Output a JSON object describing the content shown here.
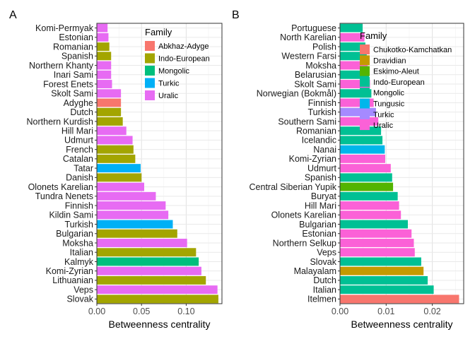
{
  "colors": {
    "Abkhaz-Adyge": "#F8766D",
    "Indo-European": "#A3A500",
    "Mongolic": "#00BF7D",
    "Turkic": "#00B0F6",
    "Uralic": "#E76BF3",
    "Chukotko-Kamchatkan": "#F8766D",
    "Dravidian": "#C49A00",
    "Eskimo-Aleut": "#53B400",
    "Tungusic": "#00B6EB",
    "Uralic_B": "#FB61D7",
    "Turkic_B": "#A58AFF",
    "Mongolic_B": "#00C094",
    "Indo-European_B": "#00C094"
  },
  "chart_data": [
    {
      "type": "bar",
      "orientation": "horizontal",
      "panel_label": "A",
      "xlabel": "Betweenness centrality",
      "xlim": [
        0,
        0.14
      ],
      "x_ticks": [
        0.0,
        0.05,
        0.1
      ],
      "x_tick_labels": [
        "0.00",
        "0.05",
        "0.10"
      ],
      "grid": true,
      "legend": {
        "title": "Family",
        "position": "top-right",
        "entries": [
          {
            "label": "Abkhaz-Adyge",
            "color": "#F8766D"
          },
          {
            "label": "Indo-European",
            "color": "#A3A500"
          },
          {
            "label": "Mongolic",
            "color": "#00BF7D"
          },
          {
            "label": "Turkic",
            "color": "#00B0F6"
          },
          {
            "label": "Uralic",
            "color": "#E76BF3"
          }
        ]
      },
      "categories": [
        "Komi-Permyak",
        "Estonian",
        "Romanian",
        "Spanish",
        "Northern Khanty",
        "Inari Sami",
        "Forest Enets",
        "Skolt Sami",
        "Adyghe",
        "Dutch",
        "Northern Kurdish",
        "Hill Mari",
        "Udmurt",
        "French",
        "Catalan",
        "Tatar",
        "Danish",
        "Olonets Karelian",
        "Tundra Nenets",
        "Finnish",
        "Kildin Sami",
        "Turkish",
        "Bulgarian",
        "Moksha",
        "Italian",
        "Kalmyk",
        "Komi-Zyrian",
        "Lithuanian",
        "Veps",
        "Slovak"
      ],
      "values": [
        0.012,
        0.013,
        0.014,
        0.016,
        0.016,
        0.016,
        0.017,
        0.027,
        0.027,
        0.027,
        0.029,
        0.033,
        0.04,
        0.041,
        0.043,
        0.049,
        0.05,
        0.053,
        0.066,
        0.077,
        0.08,
        0.085,
        0.09,
        0.101,
        0.111,
        0.114,
        0.117,
        0.122,
        0.135,
        0.136
      ],
      "families": [
        "Uralic",
        "Uralic",
        "Indo-European",
        "Indo-European",
        "Uralic",
        "Uralic",
        "Uralic",
        "Uralic",
        "Abkhaz-Adyge",
        "Indo-European",
        "Indo-European",
        "Uralic",
        "Uralic",
        "Indo-European",
        "Indo-European",
        "Turkic",
        "Indo-European",
        "Uralic",
        "Uralic",
        "Uralic",
        "Uralic",
        "Turkic",
        "Indo-European",
        "Uralic",
        "Indo-European",
        "Mongolic",
        "Uralic",
        "Indo-European",
        "Uralic",
        "Indo-European"
      ]
    },
    {
      "type": "bar",
      "orientation": "horizontal",
      "panel_label": "B",
      "xlabel": "Betweenness centrality",
      "xlim": [
        0,
        0.0268
      ],
      "x_ticks": [
        0.0,
        0.01,
        0.02
      ],
      "x_tick_labels": [
        "0.00",
        "0.01",
        "0.02"
      ],
      "grid": true,
      "legend": {
        "title": "Family",
        "position": "top-right",
        "entries": [
          {
            "label": "Chukotko-Kamchatkan",
            "color": "#F8766D"
          },
          {
            "label": "Dravidian",
            "color": "#C49A00"
          },
          {
            "label": "Eskimo-Aleut",
            "color": "#53B400"
          },
          {
            "label": "Indo-European",
            "color": "#00C094"
          },
          {
            "label": "Mongolic",
            "color": "#00C094"
          },
          {
            "label": "Tungusic",
            "color": "#00B6EB"
          },
          {
            "label": "Turkic",
            "color": "#A58AFF"
          },
          {
            "label": "Uralic",
            "color": "#FB61D7"
          }
        ]
      },
      "categories": [
        "Portuguese",
        "North Karelian",
        "Polish",
        "Western Farsi",
        "Moksha",
        "Belarusian",
        "Skolt Sami",
        "Norwegian (Bokmål)",
        "Finnish",
        "Turkish",
        "Southern Sami",
        "Romanian",
        "Icelandic",
        "Nanai",
        "Komi-Zyrian",
        "Udmurt",
        "Spanish",
        "Central Siberian Yupik",
        "Buryat",
        "Hill Mari",
        "Olonets Karelian",
        "Bulgarian",
        "Estonian",
        "Northern Selkup",
        "Veps",
        "Slovak",
        "Malayalam",
        "Dutch",
        "Italian",
        "Itelmen"
      ],
      "values": [
        0.0049,
        0.0053,
        0.0055,
        0.0058,
        0.006,
        0.0063,
        0.0065,
        0.0068,
        0.0073,
        0.0078,
        0.0083,
        0.0089,
        0.0092,
        0.0097,
        0.0098,
        0.011,
        0.0113,
        0.0115,
        0.0125,
        0.0128,
        0.0132,
        0.0147,
        0.0155,
        0.016,
        0.0162,
        0.0176,
        0.0181,
        0.019,
        0.0203,
        0.0258
      ],
      "families": [
        "Indo-European",
        "Uralic",
        "Indo-European",
        "Indo-European",
        "Uralic",
        "Indo-European",
        "Uralic",
        "Indo-European",
        "Uralic",
        "Turkic",
        "Uralic",
        "Indo-European",
        "Indo-European",
        "Tungusic",
        "Uralic",
        "Uralic",
        "Indo-European",
        "Eskimo-Aleut",
        "Mongolic",
        "Uralic",
        "Uralic",
        "Indo-European",
        "Uralic",
        "Uralic",
        "Uralic",
        "Indo-European",
        "Dravidian",
        "Indo-European",
        "Indo-European",
        "Chukotko-Kamchatkan"
      ]
    }
  ]
}
